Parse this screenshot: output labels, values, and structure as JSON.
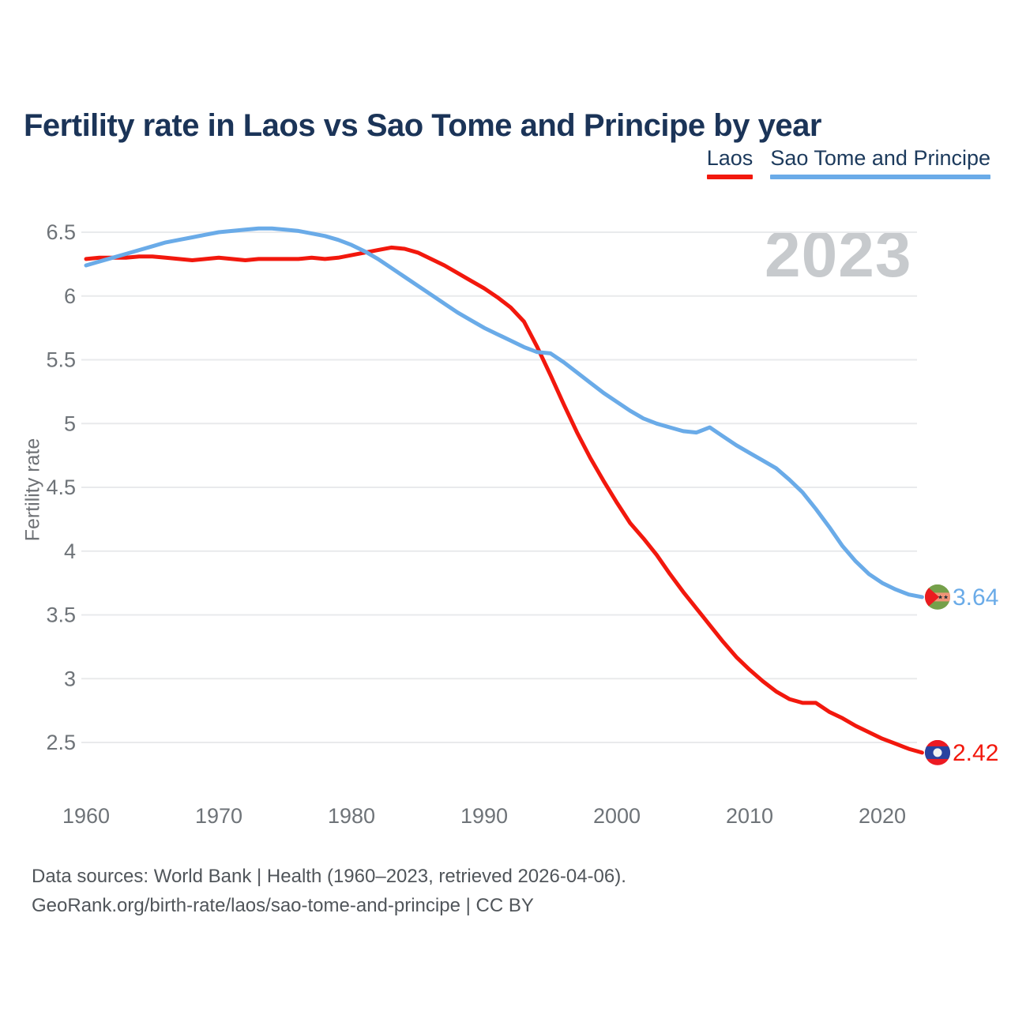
{
  "title": "Fertility rate in Laos vs Sao Tome and Principe by year",
  "watermark": "2023",
  "legend": [
    {
      "label": "Laos",
      "color": "#f2180d"
    },
    {
      "label": "Sao Tome and Principe",
      "color": "#6aabe8"
    }
  ],
  "footer": {
    "line1": "Data sources: World Bank | Health (1960–2023, retrieved 2026-04-06).",
    "line2": "GeoRank.org/birth-rate/laos/sao-tome-and-principe | CC BY"
  },
  "chart_data": {
    "type": "line",
    "title": "Fertility rate in Laos vs Sao Tome and Principe by year",
    "xlabel": "",
    "ylabel": "Fertility rate",
    "xlim": [
      1960,
      2023
    ],
    "ylim": [
      2.5,
      6.5
    ],
    "grid": true,
    "legend_position": "top-right",
    "x_ticks": [
      1960,
      1970,
      1980,
      1990,
      2000,
      2010,
      2020
    ],
    "y_ticks": [
      2.5,
      3,
      3.5,
      4,
      4.5,
      5,
      5.5,
      6,
      6.5
    ],
    "years": [
      1960,
      1961,
      1962,
      1963,
      1964,
      1965,
      1966,
      1967,
      1968,
      1969,
      1970,
      1971,
      1972,
      1973,
      1974,
      1975,
      1976,
      1977,
      1978,
      1979,
      1980,
      1981,
      1982,
      1983,
      1984,
      1985,
      1986,
      1987,
      1988,
      1989,
      1990,
      1991,
      1992,
      1993,
      1994,
      1995,
      1996,
      1997,
      1998,
      1999,
      2000,
      2001,
      2002,
      2003,
      2004,
      2005,
      2006,
      2007,
      2008,
      2009,
      2010,
      2011,
      2012,
      2013,
      2014,
      2015,
      2016,
      2017,
      2018,
      2019,
      2020,
      2021,
      2022,
      2023
    ],
    "series": [
      {
        "name": "Laos",
        "color": "#f2180d",
        "end_label": "2.42",
        "flag": "laos",
        "values": [
          6.29,
          6.3,
          6.3,
          6.3,
          6.31,
          6.31,
          6.3,
          6.29,
          6.28,
          6.29,
          6.3,
          6.29,
          6.28,
          6.29,
          6.29,
          6.29,
          6.29,
          6.3,
          6.29,
          6.3,
          6.32,
          6.34,
          6.36,
          6.38,
          6.37,
          6.34,
          6.29,
          6.24,
          6.18,
          6.12,
          6.06,
          5.99,
          5.91,
          5.8,
          5.6,
          5.38,
          5.15,
          4.93,
          4.73,
          4.55,
          4.38,
          4.22,
          4.1,
          3.97,
          3.82,
          3.68,
          3.55,
          3.42,
          3.29,
          3.17,
          3.07,
          2.98,
          2.9,
          2.84,
          2.81,
          2.81,
          2.74,
          2.69,
          2.63,
          2.58,
          2.53,
          2.49,
          2.45,
          2.42
        ]
      },
      {
        "name": "Sao Tome and Principe",
        "color": "#6aabe8",
        "end_label": "3.64",
        "flag": "sao-tome",
        "values": [
          6.24,
          6.27,
          6.3,
          6.33,
          6.36,
          6.39,
          6.42,
          6.44,
          6.46,
          6.48,
          6.5,
          6.51,
          6.52,
          6.53,
          6.53,
          6.52,
          6.51,
          6.49,
          6.47,
          6.44,
          6.4,
          6.35,
          6.29,
          6.22,
          6.15,
          6.08,
          6.01,
          5.94,
          5.87,
          5.81,
          5.75,
          5.7,
          5.65,
          5.6,
          5.56,
          5.55,
          5.48,
          5.4,
          5.32,
          5.24,
          5.17,
          5.1,
          5.04,
          5.0,
          4.97,
          4.94,
          4.93,
          4.97,
          4.9,
          4.83,
          4.77,
          4.71,
          4.65,
          4.56,
          4.46,
          4.33,
          4.19,
          4.04,
          3.92,
          3.82,
          3.75,
          3.7,
          3.66,
          3.64
        ]
      }
    ]
  }
}
